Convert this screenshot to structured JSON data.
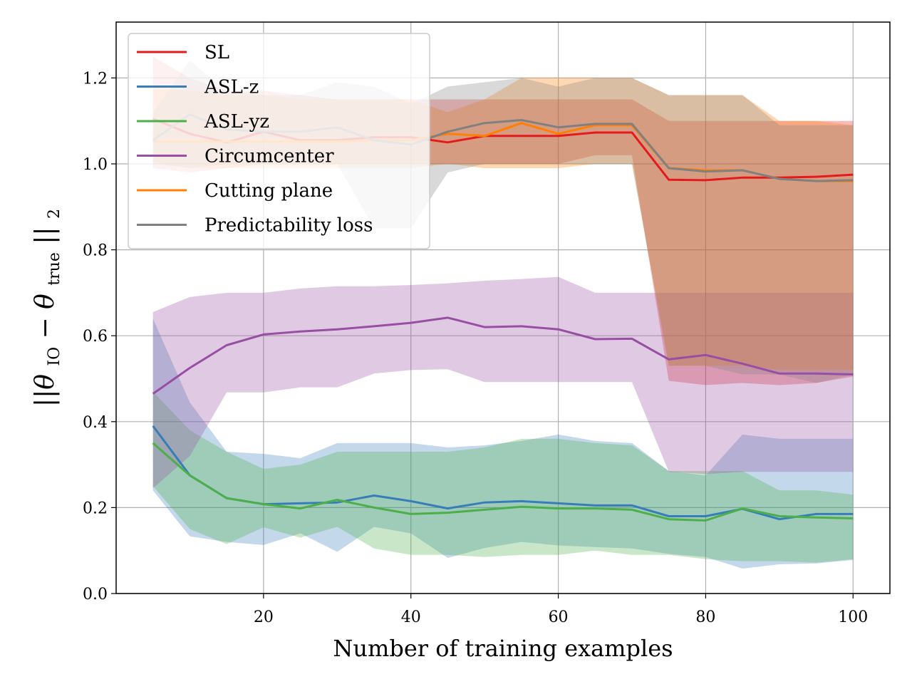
{
  "chart_data": {
    "type": "line",
    "xlabel": "Number of training examples",
    "ylabel_parts": [
      "||θ",
      "IO",
      " − θ",
      "true",
      "||",
      "2"
    ],
    "xlim": [
      0,
      105
    ],
    "ylim": [
      0,
      1.33
    ],
    "xticks": [
      20,
      40,
      60,
      80,
      100
    ],
    "yticks": [
      0.0,
      0.2,
      0.4,
      0.6,
      0.8,
      1.0,
      1.2
    ],
    "xtick_labels": [
      "20",
      "40",
      "60",
      "80",
      "100"
    ],
    "ytick_labels": [
      "0.0",
      "0.2",
      "0.4",
      "0.6",
      "0.8",
      "1.0",
      "1.2"
    ],
    "grid": true,
    "legend_position": "upper-left",
    "x": [
      5,
      10,
      15,
      20,
      25,
      30,
      35,
      40,
      45,
      50,
      55,
      60,
      65,
      70,
      75,
      80,
      85,
      90,
      95,
      100
    ],
    "series": [
      {
        "name": "SL",
        "color": "#e41a1c",
        "band_opacity": 0.3,
        "values": [
          1.105,
          1.07,
          1.05,
          1.075,
          1.055,
          1.055,
          1.062,
          1.062,
          1.05,
          1.065,
          1.065,
          1.065,
          1.073,
          1.073,
          0.963,
          0.962,
          0.968,
          0.968,
          0.97,
          0.975
        ],
        "upper": [
          1.25,
          1.2,
          1.17,
          1.17,
          1.16,
          1.15,
          1.15,
          1.15,
          1.15,
          1.15,
          1.15,
          1.15,
          1.15,
          1.15,
          1.1,
          1.1,
          1.1,
          1.1,
          1.1,
          1.1
        ],
        "lower": [
          0.99,
          0.98,
          0.99,
          1.0,
          1.0,
          1.0,
          1.0,
          1.0,
          1.0,
          1.0,
          1.0,
          1.0,
          1.02,
          1.02,
          0.495,
          0.485,
          0.49,
          0.485,
          0.49,
          0.505
        ]
      },
      {
        "name": "ASL-z",
        "color": "#377eb8",
        "band_opacity": 0.3,
        "values": [
          0.39,
          0.275,
          0.222,
          0.208,
          0.21,
          0.212,
          0.228,
          0.215,
          0.198,
          0.212,
          0.215,
          0.21,
          0.205,
          0.205,
          0.18,
          0.18,
          0.197,
          0.173,
          0.185,
          0.185
        ],
        "upper": [
          0.64,
          0.445,
          0.33,
          0.325,
          0.315,
          0.35,
          0.35,
          0.35,
          0.34,
          0.345,
          0.355,
          0.37,
          0.355,
          0.35,
          0.285,
          0.275,
          0.37,
          0.36,
          0.36,
          0.36
        ],
        "lower": [
          0.24,
          0.133,
          0.12,
          0.113,
          0.14,
          0.097,
          0.155,
          0.14,
          0.083,
          0.106,
          0.12,
          0.112,
          0.108,
          0.105,
          0.092,
          0.085,
          0.058,
          0.068,
          0.07,
          0.078
        ]
      },
      {
        "name": "ASL-yz",
        "color": "#4daf4a",
        "band_opacity": 0.3,
        "values": [
          0.35,
          0.275,
          0.222,
          0.208,
          0.198,
          0.218,
          0.2,
          0.185,
          0.188,
          0.195,
          0.202,
          0.198,
          0.198,
          0.195,
          0.173,
          0.17,
          0.198,
          0.18,
          0.177,
          0.175
        ],
        "upper": [
          0.47,
          0.38,
          0.33,
          0.29,
          0.3,
          0.33,
          0.33,
          0.33,
          0.33,
          0.34,
          0.36,
          0.36,
          0.35,
          0.345,
          0.285,
          0.285,
          0.285,
          0.24,
          0.24,
          0.23
        ],
        "lower": [
          0.25,
          0.15,
          0.115,
          0.154,
          0.13,
          0.155,
          0.105,
          0.09,
          0.09,
          0.085,
          0.09,
          0.09,
          0.1,
          0.09,
          0.09,
          0.08,
          0.075,
          0.075,
          0.072,
          0.08
        ]
      },
      {
        "name": "Circumcenter",
        "color": "#984ea3",
        "band_opacity": 0.3,
        "values": [
          0.465,
          0.525,
          0.578,
          0.603,
          0.61,
          0.615,
          0.622,
          0.63,
          0.642,
          0.62,
          0.622,
          0.615,
          0.592,
          0.593,
          0.545,
          0.555,
          0.535,
          0.512,
          0.512,
          0.51
        ],
        "upper": [
          0.655,
          0.69,
          0.7,
          0.7,
          0.71,
          0.715,
          0.715,
          0.718,
          0.722,
          0.728,
          0.732,
          0.737,
          0.7,
          0.7,
          0.7,
          0.7,
          0.7,
          0.7,
          0.7,
          0.7
        ],
        "lower": [
          0.245,
          0.32,
          0.468,
          0.468,
          0.48,
          0.48,
          0.512,
          0.52,
          0.522,
          0.492,
          0.492,
          0.492,
          0.492,
          0.492,
          0.283,
          0.278,
          0.283,
          0.283,
          0.283,
          0.283
        ]
      },
      {
        "name": "Cutting plane",
        "color": "#ff7f00",
        "band_opacity": 0.3,
        "values": [
          1.052,
          1.052,
          1.052,
          1.052,
          1.052,
          1.052,
          1.055,
          1.055,
          1.07,
          1.065,
          1.095,
          1.07,
          1.09,
          1.09,
          0.99,
          0.985,
          0.985,
          0.965,
          0.96,
          0.96
        ],
        "upper": [
          1.18,
          1.17,
          1.16,
          1.16,
          1.15,
          1.15,
          1.15,
          1.15,
          1.12,
          1.15,
          1.2,
          1.2,
          1.2,
          1.2,
          1.16,
          1.16,
          1.16,
          1.1,
          1.1,
          1.09
        ],
        "lower": [
          1.005,
          0.99,
          0.99,
          0.99,
          0.99,
          0.99,
          0.99,
          0.99,
          1.0,
          0.99,
          0.99,
          0.99,
          1.0,
          1.0,
          0.53,
          0.53,
          0.53,
          0.52,
          0.52,
          0.52
        ]
      },
      {
        "name": "Predictability loss",
        "color": "#808080",
        "band_opacity": 0.3,
        "values": [
          1.055,
          1.115,
          1.08,
          1.075,
          1.075,
          1.085,
          1.055,
          1.045,
          1.075,
          1.095,
          1.102,
          1.085,
          1.093,
          1.093,
          0.99,
          0.982,
          0.985,
          0.965,
          0.96,
          0.962
        ],
        "upper": [
          1.12,
          1.24,
          1.17,
          1.16,
          1.16,
          1.19,
          1.18,
          1.14,
          1.18,
          1.19,
          1.2,
          1.18,
          1.2,
          1.2,
          1.16,
          1.16,
          1.16,
          1.09,
          1.09,
          1.09
        ],
        "lower": [
          1.0,
          0.99,
          1.0,
          1.0,
          1.0,
          1.0,
          0.85,
          0.85,
          0.98,
          1.0,
          1.0,
          1.0,
          1.0,
          1.0,
          0.53,
          0.53,
          0.51,
          0.51,
          0.49,
          0.51
        ]
      }
    ]
  }
}
